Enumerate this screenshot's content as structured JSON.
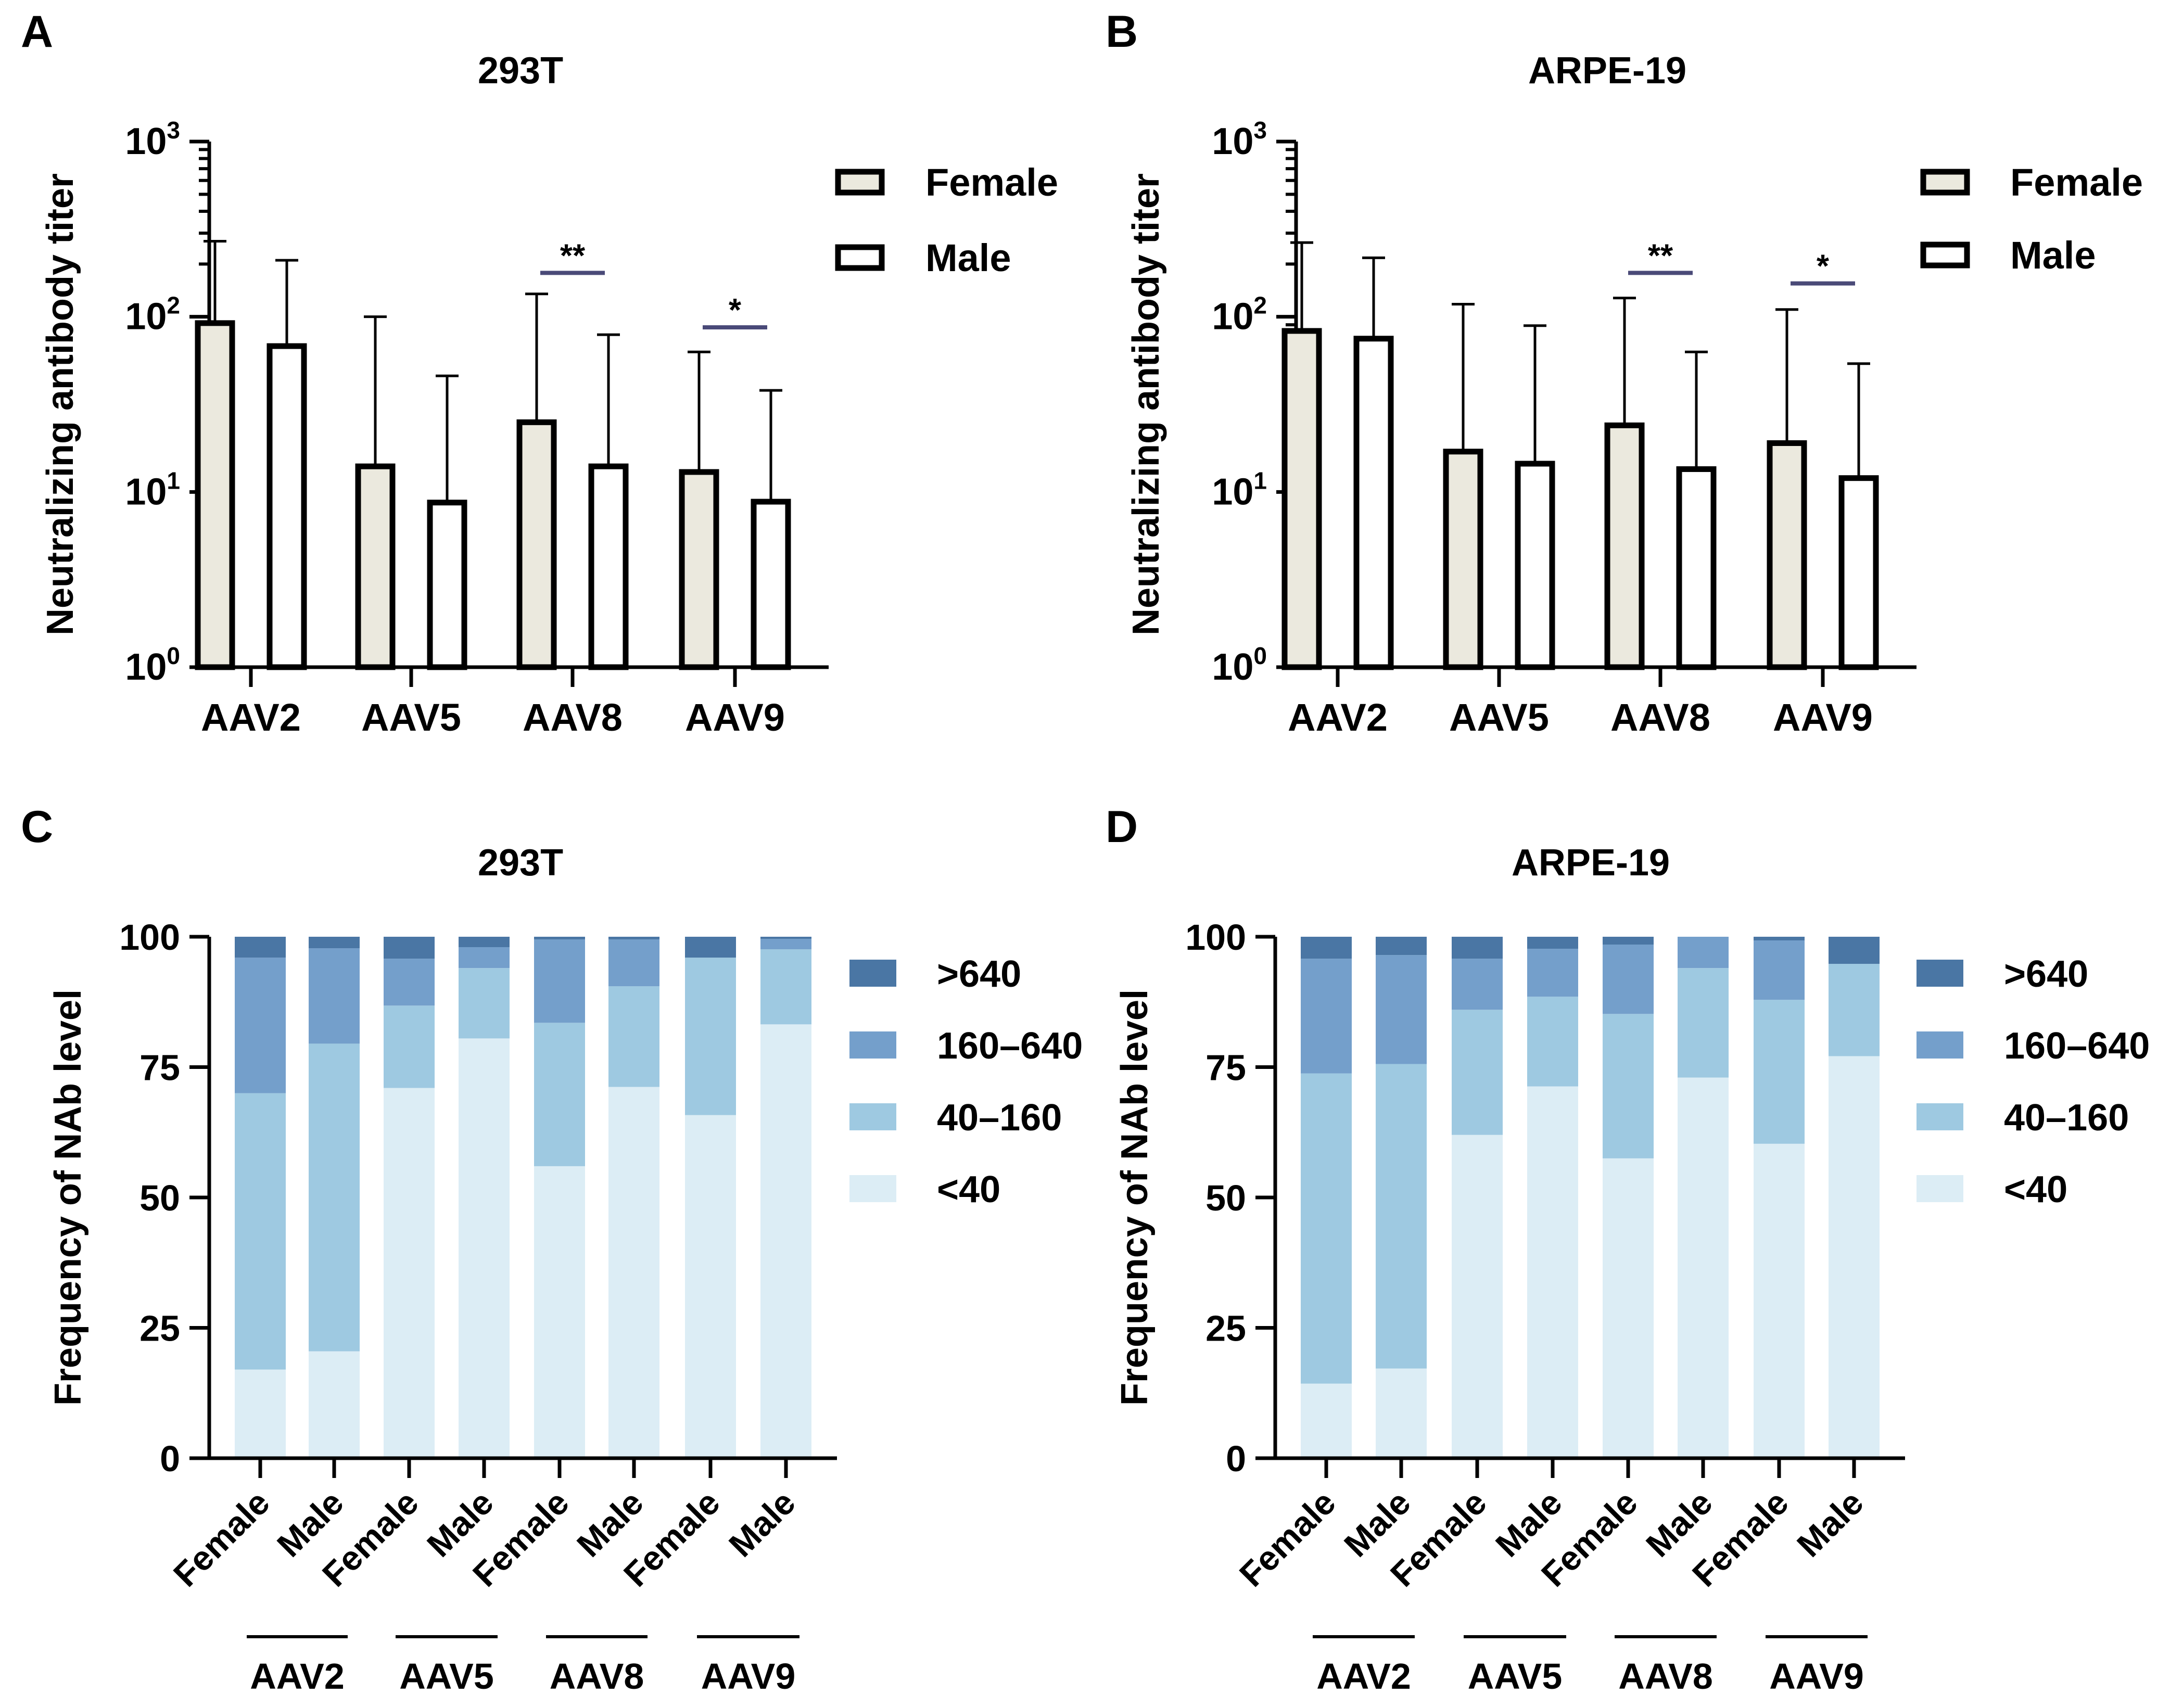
{
  "colors": {
    "female_fill": "#ebe9de",
    "male_fill": "#ffffff",
    "bar_stroke": "#000000",
    "sig_line": "#4a4a78",
    "levels": [
      "#dcedf5",
      "#9ec9e1",
      "#749fcb",
      "#4a76a4"
    ]
  },
  "chart_data": [
    {
      "panel": "A",
      "type": "bar",
      "title": "293T",
      "ylabel": "Neutralizing antibody titer",
      "xlabel": "",
      "yscale": "log",
      "ylim": [
        1,
        1000
      ],
      "yticks": [
        {
          "value": 1,
          "base": "10",
          "exp": "0"
        },
        {
          "value": 10,
          "base": "10",
          "exp": "1"
        },
        {
          "value": 100,
          "base": "10",
          "exp": "2"
        },
        {
          "value": 1000,
          "base": "10",
          "exp": "3"
        }
      ],
      "categories": [
        "AAV2",
        "AAV5",
        "AAV8",
        "AAV9"
      ],
      "series": [
        {
          "name": "Female",
          "values": [
            92,
            14,
            25,
            13
          ],
          "error_upper": [
            270,
            100,
            135,
            63
          ]
        },
        {
          "name": "Male",
          "values": [
            68,
            8.7,
            14,
            8.8
          ],
          "error_upper": [
            210,
            46,
            79,
            38
          ]
        }
      ],
      "significance": [
        {
          "category": "AAV8",
          "label": "**",
          "y": 178
        },
        {
          "category": "AAV9",
          "label": "*",
          "y": 87
        }
      ],
      "legend": {
        "position": "top-right",
        "entries": [
          "Female",
          "Male"
        ]
      }
    },
    {
      "panel": "B",
      "type": "bar",
      "title": "ARPE-19",
      "ylabel": "Neutralizing antibody titer",
      "xlabel": "",
      "yscale": "log",
      "ylim": [
        1,
        1000
      ],
      "yticks": [
        {
          "value": 1,
          "base": "10",
          "exp": "0"
        },
        {
          "value": 10,
          "base": "10",
          "exp": "1"
        },
        {
          "value": 100,
          "base": "10",
          "exp": "2"
        },
        {
          "value": 1000,
          "base": "10",
          "exp": "3"
        }
      ],
      "categories": [
        "AAV2",
        "AAV5",
        "AAV8",
        "AAV9"
      ],
      "series": [
        {
          "name": "Female",
          "values": [
            83,
            17,
            24,
            19
          ],
          "error_upper": [
            265,
            118,
            128,
            110
          ]
        },
        {
          "name": "Male",
          "values": [
            75,
            14.5,
            13.5,
            12
          ],
          "error_upper": [
            217,
            89,
            63,
            54
          ]
        }
      ],
      "significance": [
        {
          "category": "AAV8",
          "label": "**",
          "y": 178
        },
        {
          "category": "AAV9",
          "label": "*",
          "y": 155
        }
      ],
      "legend": {
        "position": "top-right",
        "entries": [
          "Female",
          "Male"
        ]
      }
    },
    {
      "panel": "C",
      "type": "bar",
      "stacked": true,
      "title": "293T",
      "ylabel": "Frequency of NAb level",
      "ylim": [
        0,
        100
      ],
      "yticks": [
        0,
        25,
        50,
        75,
        100
      ],
      "categories": [
        "Female",
        "Male",
        "Female",
        "Male",
        "Female",
        "Male",
        "Female",
        "Male"
      ],
      "groups": [
        "AAV2",
        "AAV5",
        "AAV8",
        "AAV9"
      ],
      "series": [
        {
          "name": "<40",
          "values": [
            17,
            20.5,
            71,
            80.5,
            56,
            71.2,
            65.8,
            83.2
          ]
        },
        {
          "name": "40–160",
          "values": [
            53,
            59,
            15.8,
            13.5,
            27.5,
            19.3,
            30.2,
            14.4
          ]
        },
        {
          "name": "160–640",
          "values": [
            26,
            18.3,
            9,
            4,
            16,
            9,
            0,
            2
          ]
        },
        {
          "name": ">640",
          "values": [
            4,
            2.2,
            4.2,
            2,
            0.5,
            0.5,
            4,
            0.4
          ]
        }
      ],
      "legend": {
        "position": "top-right",
        "entries": [
          ">640",
          "160–640",
          "40–160",
          "<40"
        ]
      }
    },
    {
      "panel": "D",
      "type": "bar",
      "stacked": true,
      "title": "ARPE-19",
      "ylabel": "Frequency of NAb level",
      "ylim": [
        0,
        100
      ],
      "yticks": [
        0,
        25,
        50,
        75,
        100
      ],
      "categories": [
        "Female",
        "Male",
        "Female",
        "Male",
        "Female",
        "Male",
        "Female",
        "Male"
      ],
      "groups": [
        "AAV2",
        "AAV5",
        "AAV8",
        "AAV9"
      ],
      "series": [
        {
          "name": "<40",
          "values": [
            14.3,
            17.2,
            62,
            71.3,
            57.5,
            73,
            60.3,
            77.1
          ]
        },
        {
          "name": "40–160",
          "values": [
            59.5,
            58.4,
            24,
            17.2,
            27.7,
            21,
            27.6,
            17.7
          ]
        },
        {
          "name": "160–640",
          "values": [
            22,
            20.9,
            9.8,
            9.2,
            13.3,
            6,
            11.4,
            0
          ]
        },
        {
          "name": ">640",
          "values": [
            4.2,
            3.5,
            4.2,
            2.3,
            1.5,
            0,
            0.7,
            5.2
          ]
        }
      ],
      "legend": {
        "position": "top-right",
        "entries": [
          ">640",
          "160–640",
          "40–160",
          "<40"
        ]
      }
    }
  ]
}
